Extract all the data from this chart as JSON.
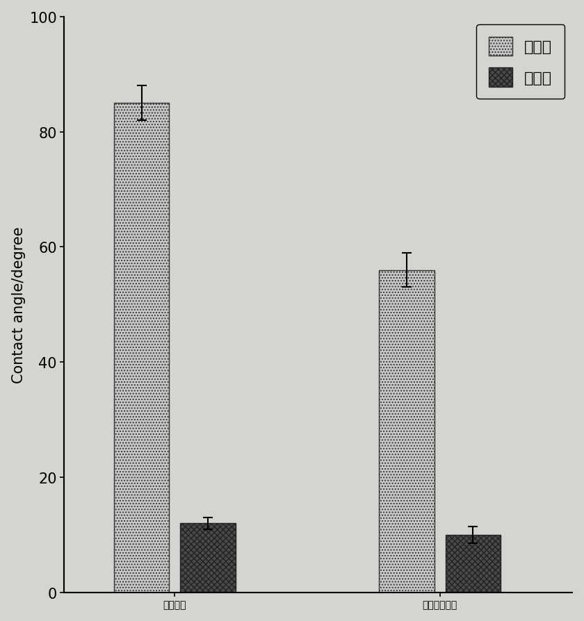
{
  "groups": [
    "壳聚糖膜",
    "改性壳聚糖膜"
  ],
  "series": [
    "前进角",
    "后退角"
  ],
  "values": [
    [
      85,
      12
    ],
    [
      56,
      10
    ]
  ],
  "errors": [
    [
      3,
      1
    ],
    [
      3,
      1.5
    ]
  ],
  "bar_color_light": "#c8c8c8",
  "bar_color_dark": "#4a4a4a",
  "bar_hatch_light": "....",
  "bar_hatch_dark": "xxxx",
  "ylabel": "Contact angle/degree",
  "ylim": [
    0,
    100
  ],
  "yticks": [
    0,
    20,
    40,
    60,
    80,
    100
  ],
  "bar_width": 0.25,
  "background_color": "#d4d4d0",
  "plot_bg_color": "#d4d4d0",
  "legend_fontsize": 16,
  "axis_label_fontsize": 15,
  "tick_fontsize": 15,
  "xtick_fontsize": 20
}
